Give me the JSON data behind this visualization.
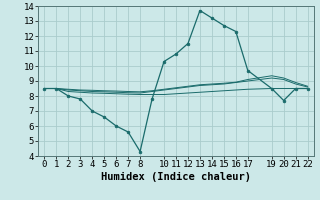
{
  "title": "",
  "xlabel": "Humidex (Indice chaleur)",
  "ylabel": "",
  "bg_color": "#cce8e8",
  "grid_color": "#aacccc",
  "line_color": "#1a6b6b",
  "xlim": [
    -0.5,
    22.5
  ],
  "ylim": [
    4,
    14
  ],
  "xticks": [
    0,
    1,
    2,
    3,
    4,
    5,
    6,
    7,
    8,
    10,
    11,
    12,
    13,
    14,
    15,
    16,
    17,
    19,
    20,
    21,
    22
  ],
  "yticks": [
    4,
    5,
    6,
    7,
    8,
    9,
    10,
    11,
    12,
    13,
    14
  ],
  "line_main": {
    "x": [
      0,
      1,
      2,
      3,
      4,
      5,
      6,
      7,
      8,
      9,
      10,
      11,
      12,
      13,
      14,
      15,
      16,
      17,
      19,
      20,
      21,
      22
    ],
    "y": [
      8.5,
      8.5,
      8.0,
      7.8,
      7.0,
      6.6,
      6.0,
      5.6,
      4.3,
      7.8,
      10.3,
      10.8,
      11.5,
      13.7,
      13.2,
      12.7,
      12.3,
      9.7,
      8.5,
      7.7,
      8.5,
      8.5
    ]
  },
  "line_flat1": {
    "x": [
      0,
      1,
      2,
      3,
      4,
      5,
      6,
      7,
      8,
      9,
      10,
      11,
      12,
      13,
      14,
      15,
      16,
      17,
      19,
      20,
      21,
      22
    ],
    "y": [
      8.5,
      8.5,
      8.3,
      8.25,
      8.2,
      8.18,
      8.15,
      8.12,
      8.1,
      8.1,
      8.1,
      8.15,
      8.2,
      8.25,
      8.3,
      8.35,
      8.4,
      8.45,
      8.5,
      8.5,
      8.5,
      8.5
    ]
  },
  "line_flat2": {
    "x": [
      0,
      1,
      2,
      3,
      4,
      5,
      6,
      7,
      8,
      9,
      10,
      11,
      12,
      13,
      14,
      15,
      16,
      17,
      19,
      20,
      21,
      22
    ],
    "y": [
      8.5,
      8.5,
      8.4,
      8.35,
      8.3,
      8.28,
      8.25,
      8.22,
      8.2,
      8.3,
      8.4,
      8.5,
      8.6,
      8.7,
      8.75,
      8.8,
      8.9,
      9.0,
      9.2,
      9.1,
      8.8,
      8.6
    ]
  },
  "line_flat3": {
    "x": [
      0,
      1,
      2,
      3,
      4,
      5,
      6,
      7,
      8,
      9,
      10,
      11,
      12,
      13,
      14,
      15,
      16,
      17,
      19,
      20,
      21,
      22
    ],
    "y": [
      8.5,
      8.5,
      8.45,
      8.4,
      8.38,
      8.35,
      8.33,
      8.3,
      8.28,
      8.35,
      8.45,
      8.55,
      8.65,
      8.75,
      8.8,
      8.85,
      8.92,
      9.1,
      9.35,
      9.2,
      8.9,
      8.65
    ]
  },
  "font": "monospace",
  "tick_fontsize": 6.5,
  "label_fontsize": 7.5
}
